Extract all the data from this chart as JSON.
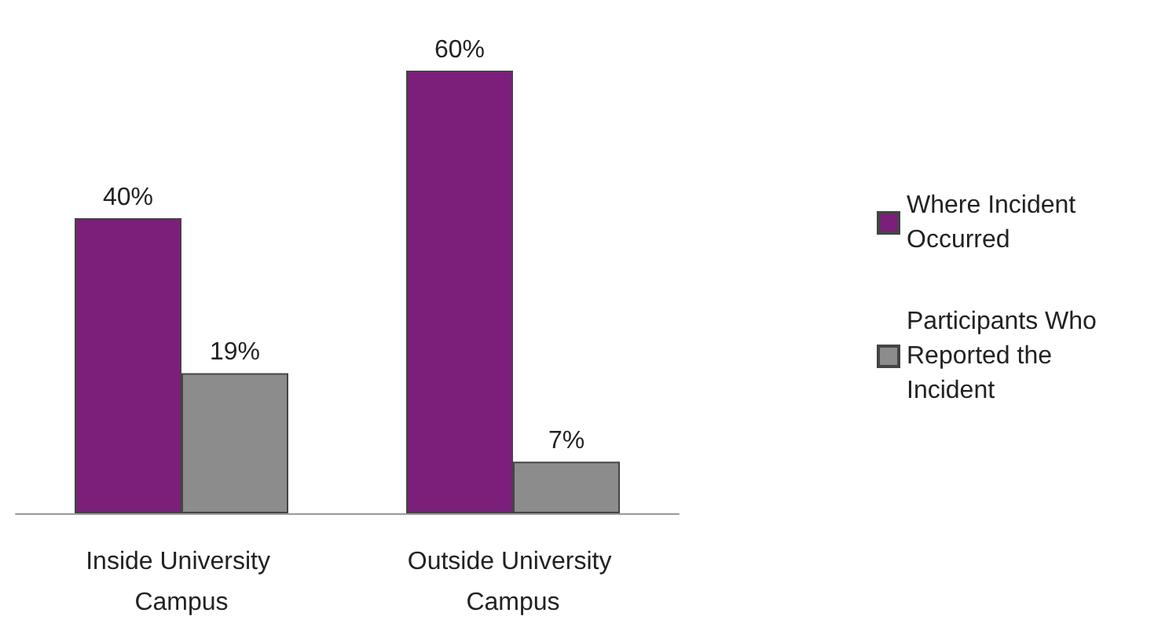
{
  "chart_data": {
    "type": "bar",
    "categories": [
      "Inside University Campus",
      "Outside University Campus"
    ],
    "series": [
      {
        "name": "Where Incident Occurred",
        "color": "#7b1f7b",
        "values": [
          40,
          60
        ],
        "value_labels": [
          "40%",
          "60%"
        ]
      },
      {
        "name": "Participants Who Reported the Incident",
        "color": "#8c8c8c",
        "values": [
          19,
          7
        ],
        "value_labels": [
          "19%",
          "7%"
        ]
      }
    ],
    "legend": "right",
    "grid": false
  }
}
